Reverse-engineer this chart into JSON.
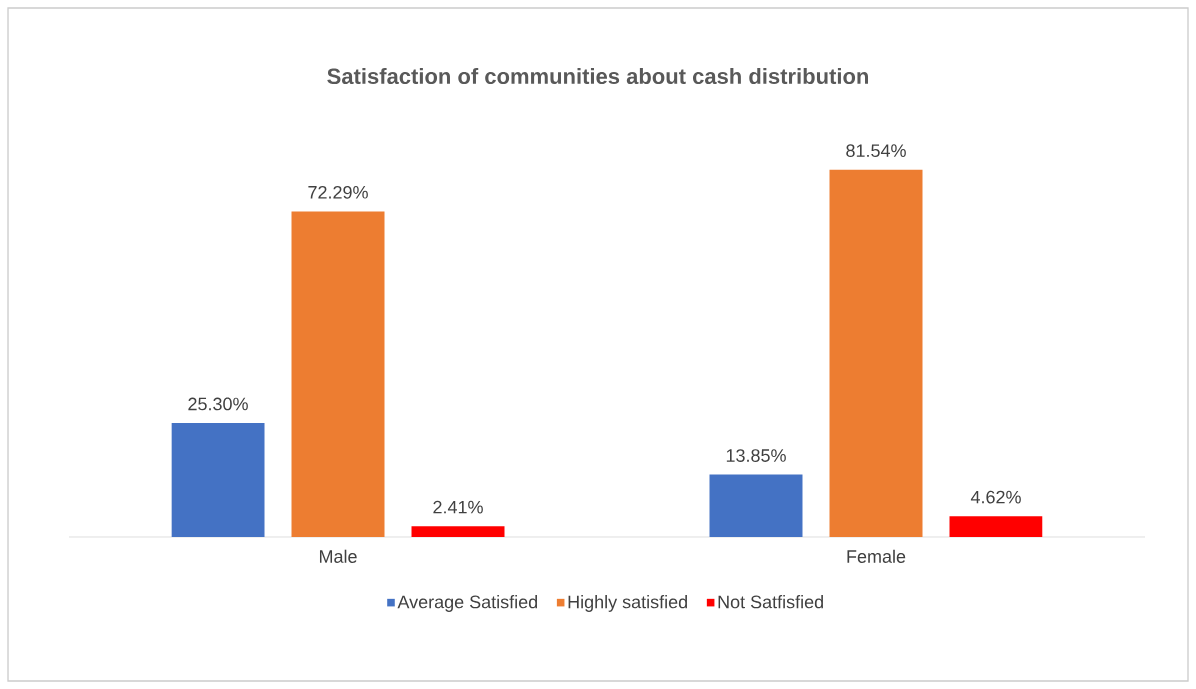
{
  "chart_data": {
    "type": "bar",
    "title": "Satisfaction of communities about cash distribution",
    "categories": [
      "Male",
      "Female"
    ],
    "series": [
      {
        "name": "Average Satisfied",
        "color": "#4472c4",
        "values": [
          25.3,
          13.85
        ],
        "value_labels": [
          "25.30%",
          "13.85%"
        ]
      },
      {
        "name": "Highly satisfied",
        "color": "#ed7d31",
        "values": [
          72.29,
          81.54
        ],
        "value_labels": [
          "72.29%",
          "81.54%"
        ]
      },
      {
        "name": "Not Satfisfied",
        "color": "#ff0000",
        "values": [
          2.41,
          4.62
        ],
        "value_labels": [
          "2.41%",
          "4.62%"
        ]
      }
    ],
    "legend": "bottom",
    "grid": false
  }
}
